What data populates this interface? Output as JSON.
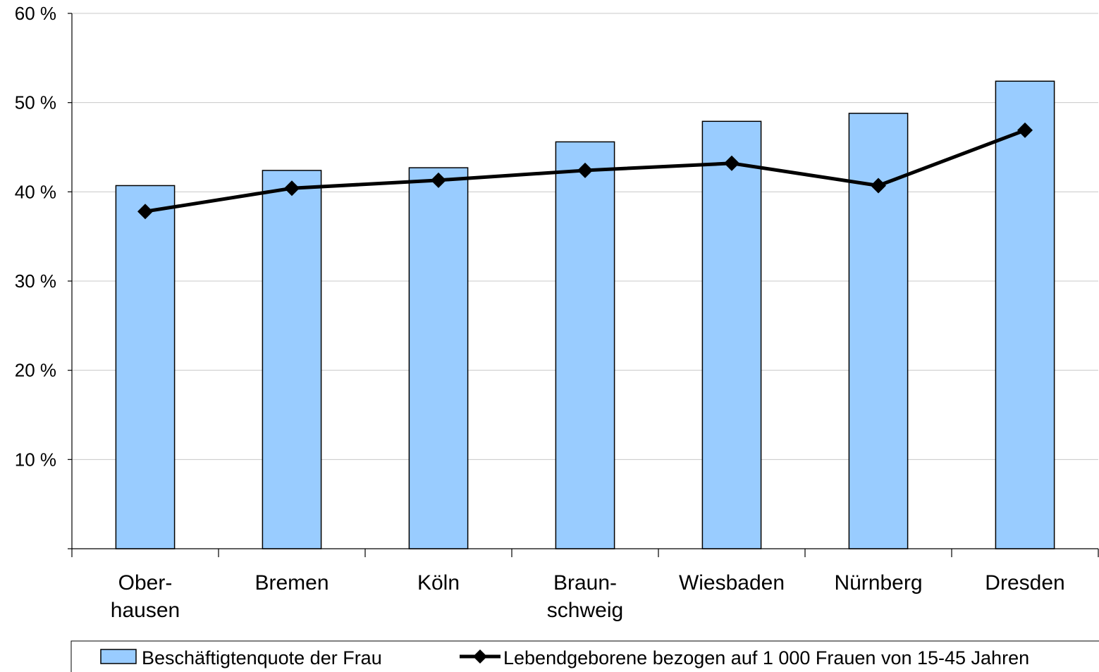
{
  "chart_data": {
    "type": "bar",
    "categories": [
      [
        "Ober-",
        "hausen"
      ],
      [
        "Bremen"
      ],
      [
        "Köln"
      ],
      [
        "Braun-",
        "schweig"
      ],
      [
        "Wiesbaden"
      ],
      [
        "Nürnberg"
      ],
      [
        "Dresden"
      ]
    ],
    "y_ticks": [
      {
        "value": 10,
        "label": "10 %"
      },
      {
        "value": 20,
        "label": "20 %"
      },
      {
        "value": 30,
        "label": "30 %"
      },
      {
        "value": 40,
        "label": "40 %"
      },
      {
        "value": 50,
        "label": "50 %"
      },
      {
        "value": 60,
        "label": "60 %"
      }
    ],
    "ylim": [
      0,
      60
    ],
    "grid": true,
    "legend_position": "bottom",
    "series": [
      {
        "name": "Beschäftigtenquote der Frau",
        "type": "bar",
        "color": "#99ccff",
        "values": [
          40.7,
          42.4,
          42.7,
          45.6,
          47.9,
          48.8,
          52.4
        ]
      },
      {
        "name": "Lebendgeborene bezogen auf 1 000 Frauen von 15-45 Jahren",
        "type": "line",
        "color": "#000000",
        "marker": "diamond",
        "values": [
          37.8,
          40.4,
          41.3,
          42.4,
          43.2,
          40.7,
          46.9
        ]
      }
    ]
  }
}
